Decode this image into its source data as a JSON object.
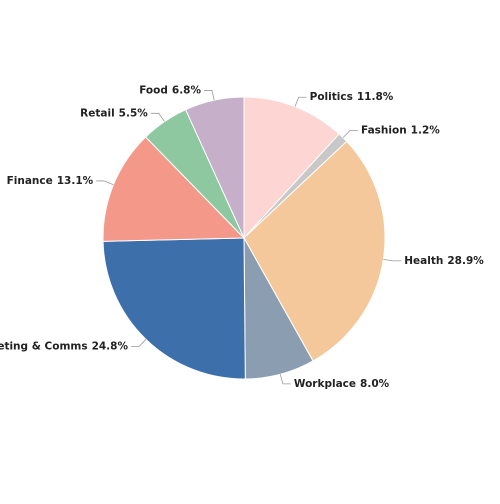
{
  "chart_data": {
    "type": "pie",
    "categories": [
      "Politics",
      "Fashion",
      "Health",
      "Workplace",
      "Marketing & Comms",
      "Finance",
      "Retail",
      "Food"
    ],
    "values": [
      11.8,
      1.2,
      28.9,
      8.0,
      24.8,
      13.1,
      5.5,
      6.8
    ],
    "value_labels": [
      "11.8%",
      "1.2%",
      "28.9%",
      "8.0%",
      "24.8%",
      "13.1%",
      "5.5%",
      "6.8%"
    ],
    "colors": [
      "#fdd5d2",
      "#c8c8c8",
      "#f4c89a",
      "#8a9db1",
      "#3d6fab",
      "#f4998a",
      "#8dc8a0",
      "#c6afc8"
    ]
  }
}
